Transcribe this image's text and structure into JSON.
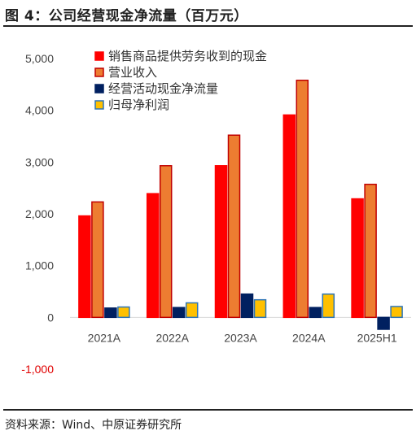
{
  "figure": {
    "title": "图 4：公司经营现金净流量（百万元）",
    "source": "资料来源：Wind、中原证券研究所"
  },
  "chart_data": {
    "type": "bar",
    "categories": [
      "2021A",
      "2022A",
      "2023A",
      "2024A",
      "2025H1"
    ],
    "ylim": [
      -1000,
      5000
    ],
    "yticks": [
      -1000,
      0,
      1000,
      2000,
      3000,
      4000,
      5000
    ],
    "ytick_labels": [
      "-1,000",
      "0",
      "1,000",
      "2,000",
      "3,000",
      "4,000",
      "5,000"
    ],
    "legend_position": "top-center",
    "grid": false,
    "series": [
      {
        "name": "销售商品提供劳务收到的现金",
        "fill": "#ff0000",
        "stroke": "#ff0000",
        "values": [
          1960,
          2390,
          2930,
          3910,
          2290
        ]
      },
      {
        "name": "营业收入",
        "fill": "#ed7d31",
        "stroke": "#c00000",
        "values": [
          2230,
          2930,
          3520,
          4580,
          2570
        ]
      },
      {
        "name": "经营活动现金净流量",
        "fill": "#002060",
        "stroke": "#002060",
        "values": [
          180,
          190,
          450,
          190,
          -230
        ]
      },
      {
        "name": "归母净利润",
        "fill": "#ffc000",
        "stroke": "#2e75b6",
        "values": [
          200,
          280,
          340,
          450,
          210
        ]
      }
    ]
  }
}
